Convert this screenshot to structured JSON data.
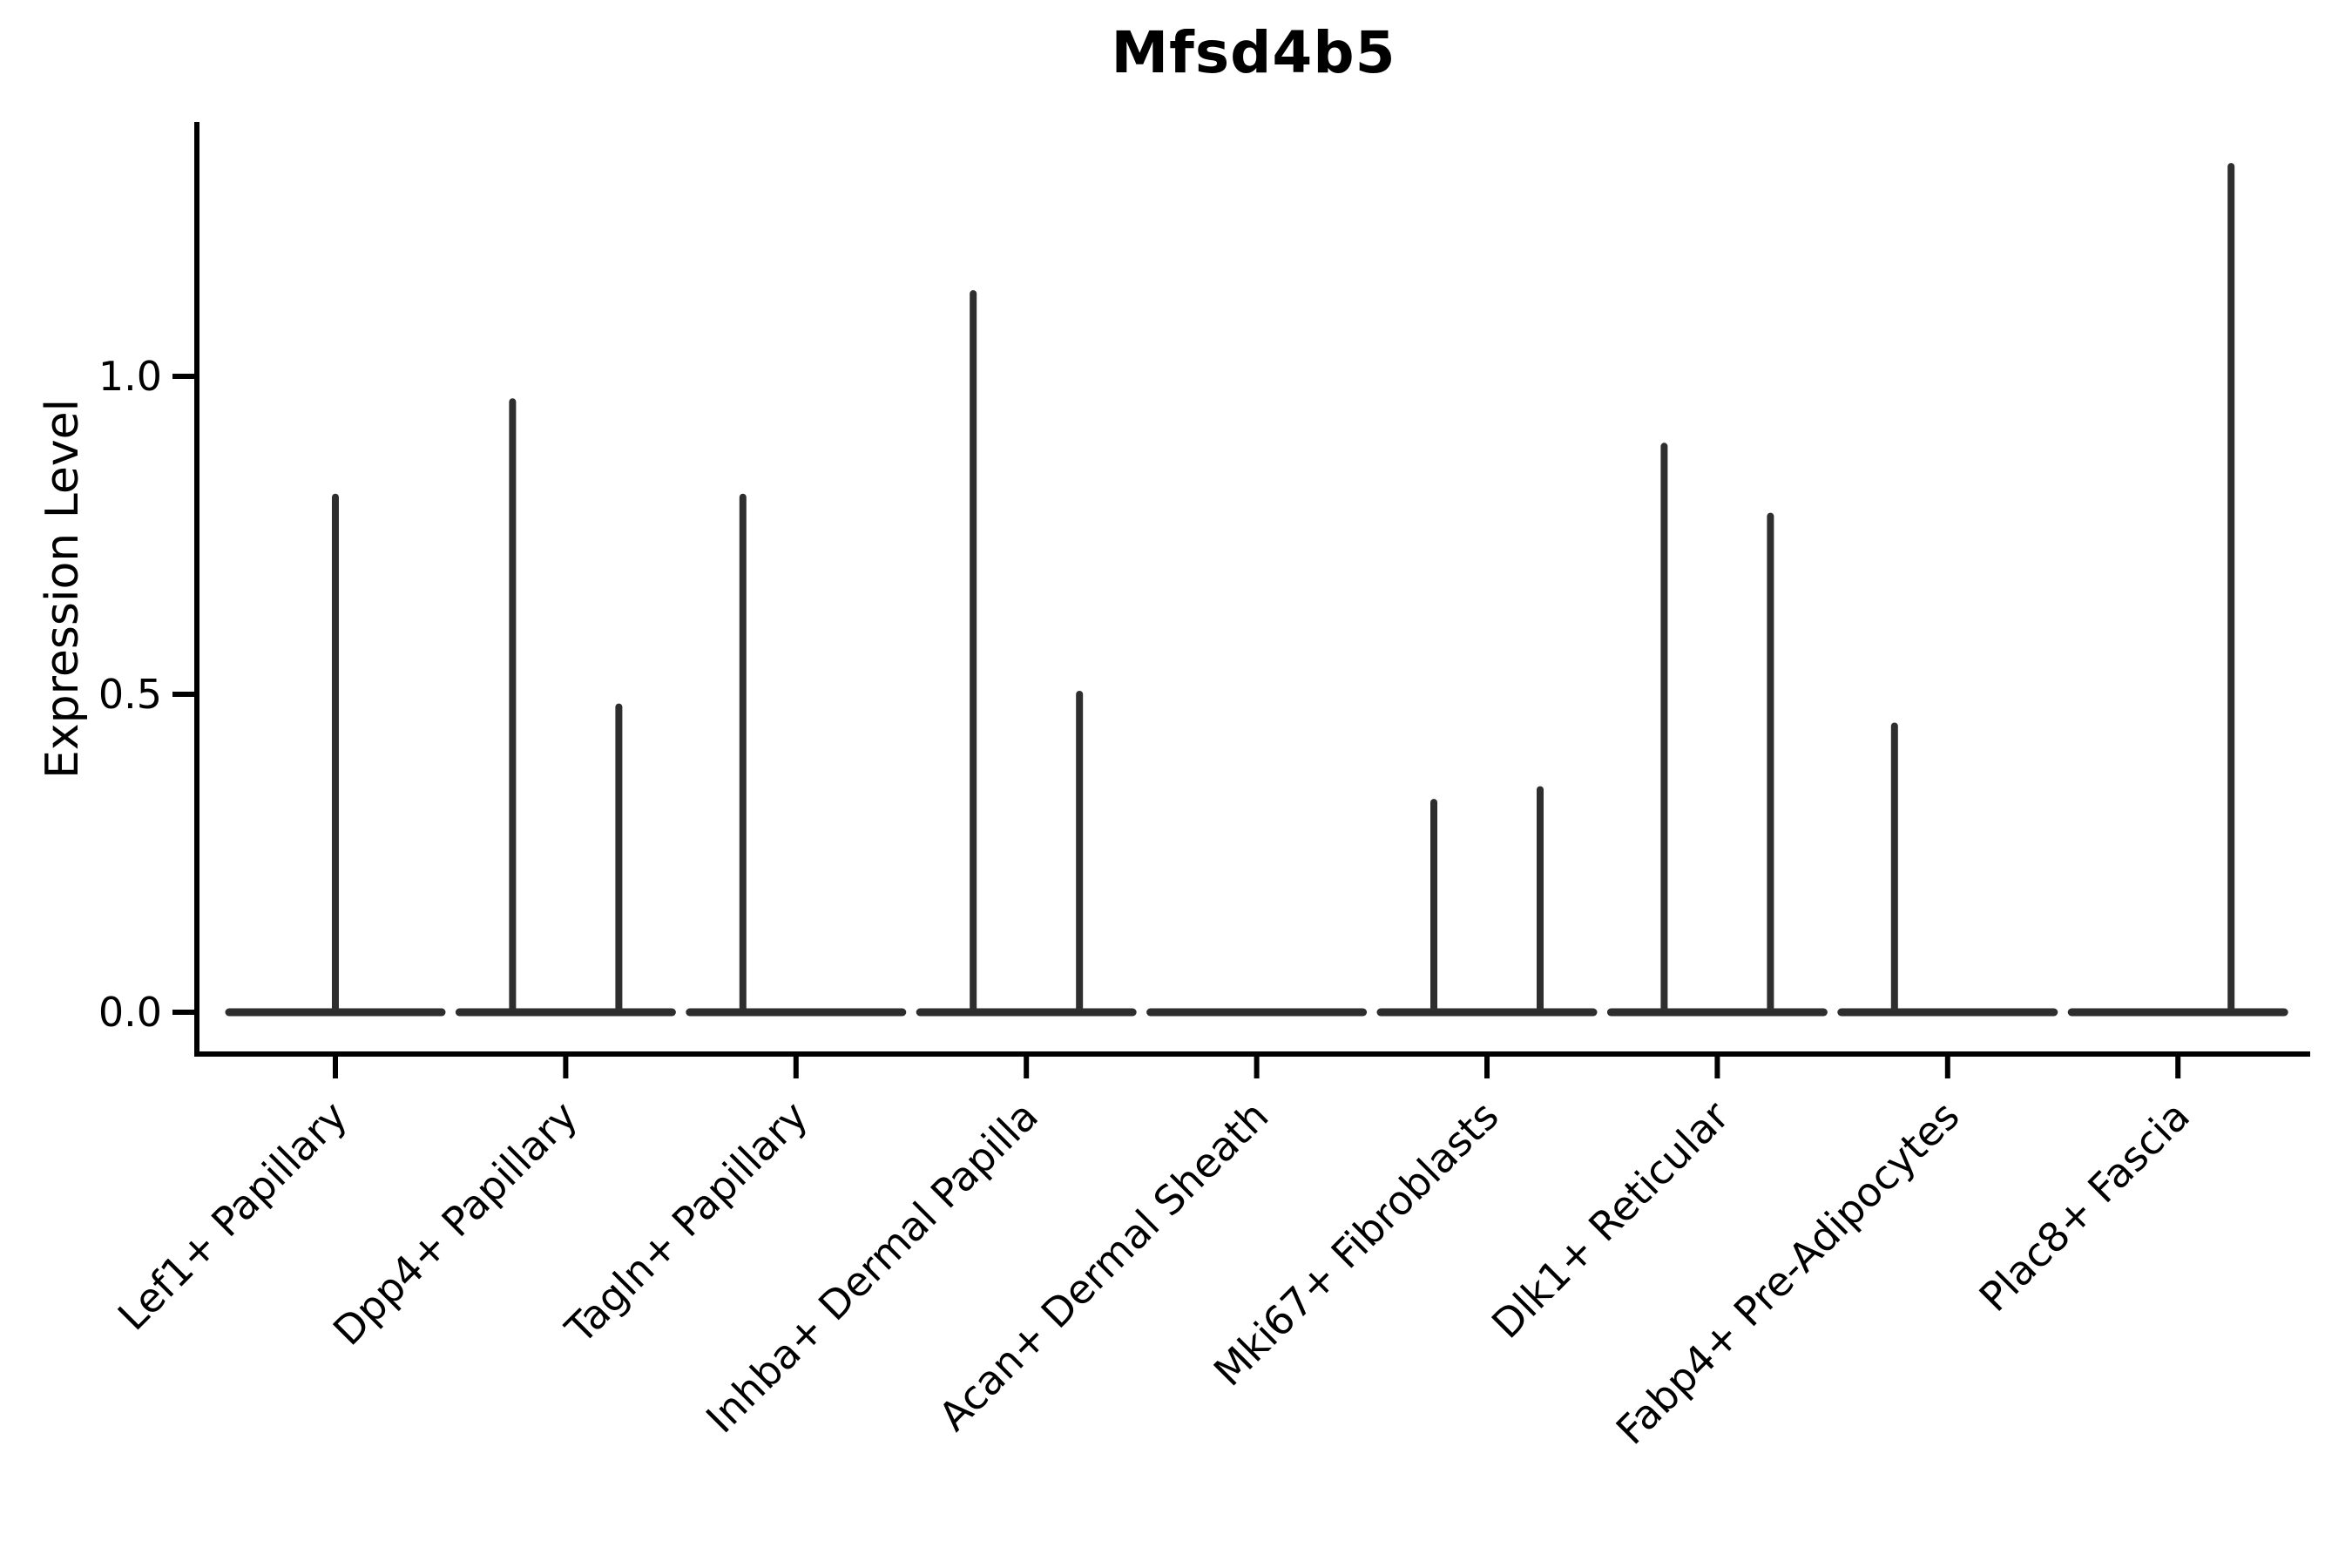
{
  "chart": {
    "title": "Mfsd4b5",
    "ylabel": "Expression Level"
  },
  "colors": {
    "violin_line": "#2e2e2e",
    "axis": "#000000",
    "background": "#ffffff"
  },
  "chart_data": {
    "type": "violin",
    "title": "Mfsd4b5",
    "xlabel": "",
    "ylabel": "Expression Level",
    "ylim": [
      -0.07,
      1.4
    ],
    "yticks": [
      0.0,
      0.5,
      1.0
    ],
    "ytick_labels": [
      "0.0",
      "0.5",
      "1.0"
    ],
    "grid": false,
    "legend": "none",
    "description": "Violin plot of gene expression; nearly all density is at 0 (flat wide base per group) with thin spikes reaching each violin's maximum expression value. Some categories contain two side-by-side sub-violins.",
    "categories": [
      {
        "label": "Lef1+ Papillary",
        "violins": [
          {
            "position": "center",
            "max": 0.81
          }
        ]
      },
      {
        "label": "Dpp4+ Papillary",
        "violins": [
          {
            "position": "left",
            "max": 0.96
          },
          {
            "position": "right",
            "max": 0.48
          }
        ]
      },
      {
        "label": "Tagln+ Papillary",
        "violins": [
          {
            "position": "left",
            "max": 0.81
          }
        ]
      },
      {
        "label": "Inhba+ Dermal Papilla",
        "violins": [
          {
            "position": "left",
            "max": 1.13
          },
          {
            "position": "right",
            "max": 0.5
          }
        ]
      },
      {
        "label": "Acan+ Dermal Sheath",
        "violins": []
      },
      {
        "label": "Mki67+ Fibroblasts",
        "violins": [
          {
            "position": "left",
            "max": 0.33
          },
          {
            "position": "right",
            "max": 0.35
          }
        ]
      },
      {
        "label": "Dlk1+ Reticular",
        "violins": [
          {
            "position": "left",
            "max": 0.89
          },
          {
            "position": "right",
            "max": 0.78
          }
        ]
      },
      {
        "label": "Fabp4+ Pre-Adipocytes",
        "violins": [
          {
            "position": "left",
            "max": 0.45
          }
        ]
      },
      {
        "label": "Plac8+ Fascia",
        "violins": [
          {
            "position": "right",
            "max": 1.33
          }
        ]
      }
    ]
  }
}
